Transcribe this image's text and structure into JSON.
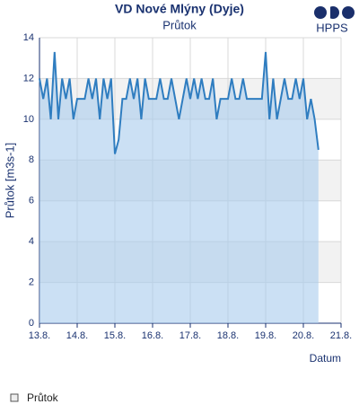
{
  "chart_data": {
    "type": "area",
    "title": "VD Nové Mlýny (Dyje)",
    "subtitle": "Průtok",
    "brand": "HPPS",
    "ylabel": "Průtok [m3s-1]",
    "xlabel": "Datum",
    "x": [
      13.0,
      13.1,
      13.2,
      13.3,
      13.4,
      13.5,
      13.6,
      13.7,
      13.8,
      13.9,
      14.0,
      14.1,
      14.2,
      14.3,
      14.4,
      14.5,
      14.6,
      14.7,
      14.8,
      14.9,
      15.0,
      15.1,
      15.2,
      15.3,
      15.4,
      15.5,
      15.6,
      15.7,
      15.8,
      15.9,
      16.0,
      16.1,
      16.2,
      16.3,
      16.4,
      16.5,
      16.6,
      16.7,
      16.8,
      16.9,
      17.0,
      17.1,
      17.2,
      17.3,
      17.4,
      17.5,
      17.6,
      17.7,
      17.8,
      17.9,
      18.0,
      18.1,
      18.2,
      18.3,
      18.4,
      18.5,
      18.6,
      18.7,
      18.8,
      18.9,
      19.0,
      19.1,
      19.2,
      19.3,
      19.4,
      19.5,
      19.6,
      19.7,
      19.8,
      19.9,
      20.0,
      20.1,
      20.2,
      20.3,
      20.4
    ],
    "series": [
      {
        "name": "Průtok",
        "color": "#2f7dc0",
        "fill": "#a9cbec",
        "values": [
          12,
          11,
          12,
          10,
          13.3,
          10,
          12,
          11,
          12,
          10,
          11,
          11,
          11,
          12,
          11,
          12,
          10,
          12,
          11,
          12,
          8.3,
          9,
          11,
          11,
          12,
          11,
          12,
          10,
          12,
          11,
          11,
          11,
          12,
          11,
          11,
          12,
          11,
          10,
          11,
          12,
          11,
          12,
          11,
          12,
          11,
          11,
          12,
          10,
          11,
          11,
          11,
          12,
          11,
          11,
          12,
          11,
          11,
          11,
          11,
          11,
          13.3,
          10,
          12,
          10,
          11,
          12,
          11,
          11,
          12,
          11,
          12,
          10,
          11,
          10,
          8.5
        ]
      }
    ],
    "xlim": [
      13,
      21
    ],
    "xticks": [
      {
        "value": 13,
        "label": "13.8."
      },
      {
        "value": 14,
        "label": "14.8."
      },
      {
        "value": 15,
        "label": "15.8."
      },
      {
        "value": 16,
        "label": "16.8."
      },
      {
        "value": 17,
        "label": "17.8."
      },
      {
        "value": 18,
        "label": "18.8."
      },
      {
        "value": 19,
        "label": "19.8."
      },
      {
        "value": 20,
        "label": "20.8."
      },
      {
        "value": 21,
        "label": "21.8."
      }
    ],
    "ylim": [
      0,
      14
    ],
    "yticks": [
      0,
      2,
      4,
      6,
      8,
      10,
      12,
      14
    ],
    "grid": true,
    "bands": true
  }
}
